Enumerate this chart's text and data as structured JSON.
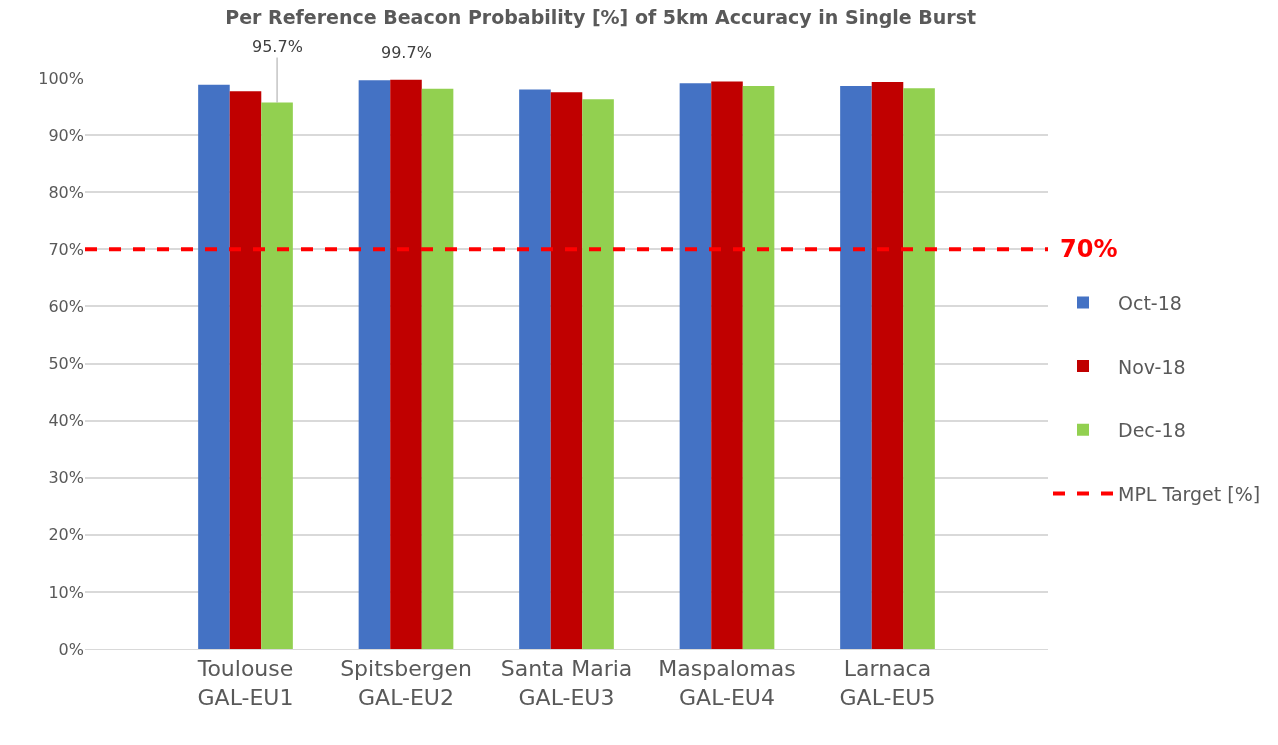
{
  "chart_data": {
    "type": "bar",
    "title": "Per Reference Beacon Probability [%] of 5km Accuracy in Single Burst",
    "categories": [
      "Toulouse\nGAL-EU1",
      "Spitsbergen\nGAL-EU2",
      "Santa Maria\nGAL-EU3",
      "Maspalomas\nGAL-EU4",
      "Larnaca\nGAL-EU5"
    ],
    "series": [
      {
        "name": "Oct-18",
        "color": "#4472c4",
        "values": [
          98.8,
          99.6,
          98.0,
          99.1,
          98.6
        ]
      },
      {
        "name": "Nov-18",
        "color": "#c00000",
        "values": [
          97.7,
          99.7,
          97.5,
          99.4,
          99.3
        ],
        "value_labels": [
          null,
          "99.7%",
          null,
          null,
          null
        ]
      },
      {
        "name": "Dec-18",
        "color": "#92d050",
        "values": [
          95.7,
          98.1,
          96.3,
          98.6,
          98.2
        ],
        "value_labels": [
          "95.7%",
          null,
          null,
          null,
          null
        ]
      }
    ],
    "ylim": [
      0,
      100
    ],
    "yticks": [
      {
        "value": 0,
        "label": "0%"
      },
      {
        "value": 10,
        "label": "10%"
      },
      {
        "value": 20,
        "label": "20%"
      },
      {
        "value": 30,
        "label": "30%"
      },
      {
        "value": 40,
        "label": "40%"
      },
      {
        "value": 50,
        "label": "50%"
      },
      {
        "value": 60,
        "label": "60%"
      },
      {
        "value": 70,
        "label": "70%"
      },
      {
        "value": 80,
        "label": "80%"
      },
      {
        "value": 90,
        "label": "90%"
      },
      {
        "value": 100,
        "label": "100%"
      }
    ],
    "ref_lines": [
      {
        "axis": "y",
        "value": 70,
        "label": "MPL Target [%]",
        "color": "#ff0000",
        "line_style": "dashed"
      }
    ],
    "annotations": [
      "70%"
    ],
    "grid": "y",
    "legend": "right"
  }
}
